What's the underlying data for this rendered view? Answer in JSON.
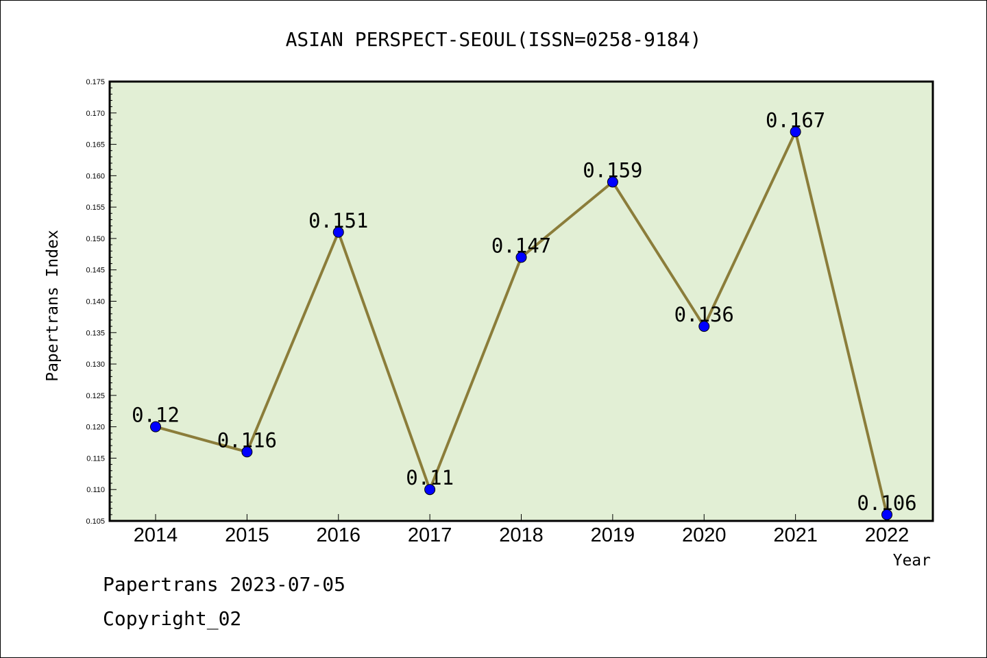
{
  "chart_data": {
    "type": "line",
    "title": "ASIAN PERSPECT-SEOUL(ISSN=0258-9184)",
    "xlabel": "Year",
    "ylabel": "Papertrans Index",
    "categories": [
      "2014",
      "2015",
      "2016",
      "2017",
      "2018",
      "2019",
      "2020",
      "2021",
      "2022"
    ],
    "values": [
      0.12,
      0.116,
      0.151,
      0.11,
      0.147,
      0.159,
      0.136,
      0.167,
      0.106
    ],
    "data_labels": [
      "0.12",
      "0.116",
      "0.151",
      "0.11",
      "0.147",
      "0.159",
      "0.136",
      "0.167",
      "0.106"
    ],
    "ylim": [
      0.105,
      0.175
    ],
    "yticks": [
      "0.105",
      "0.110",
      "0.115",
      "0.120",
      "0.125",
      "0.130",
      "0.135",
      "0.140",
      "0.145",
      "0.150",
      "0.155",
      "0.160",
      "0.165",
      "0.170",
      "0.175"
    ],
    "grid": false,
    "colors": {
      "plot_background": "#e2efd5",
      "line": "#8b7d3a",
      "marker": "#0000ff"
    }
  },
  "footer": {
    "line1": "Papertrans 2023-07-05",
    "line2": "Copyright_02"
  }
}
